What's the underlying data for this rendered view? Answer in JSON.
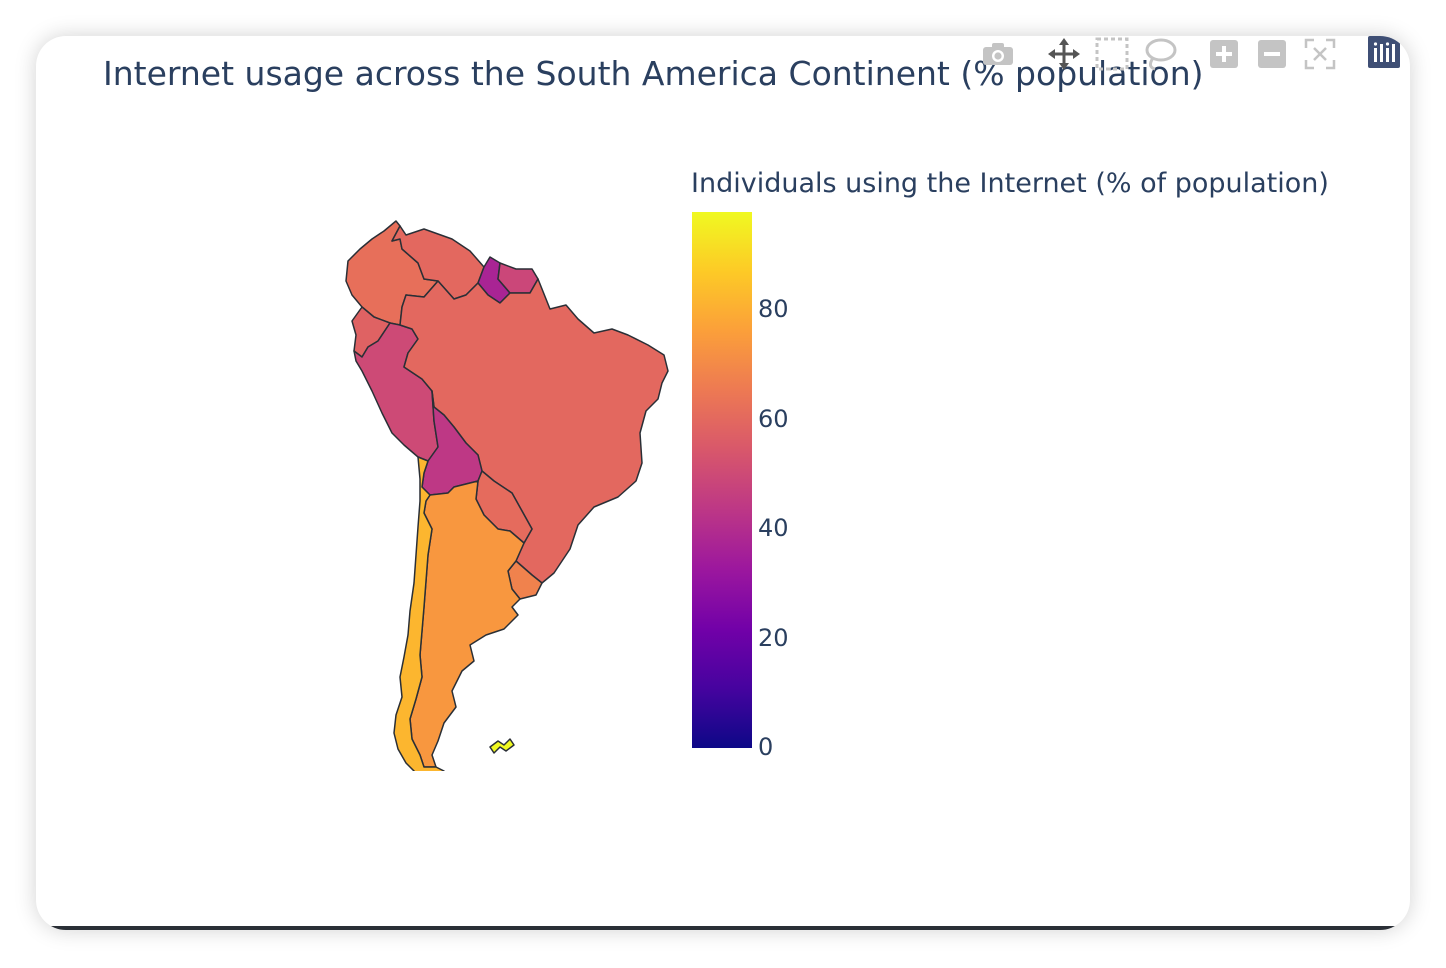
{
  "title": "Internet usage across the South America Continent (% population)",
  "colorbar": {
    "title": "Individuals using the Internet (% of population)",
    "ticks": [
      "0",
      "20",
      "40",
      "60",
      "80"
    ]
  },
  "modebar": {
    "buttons": [
      {
        "icon": "camera-icon",
        "tooltip": "Download plot as a png"
      },
      {
        "icon": "pan-icon",
        "tooltip": "Pan"
      },
      {
        "icon": "box-select-icon",
        "tooltip": "Box Select"
      },
      {
        "icon": "lasso-select-icon",
        "tooltip": "Lasso Select"
      },
      {
        "icon": "zoom-in-icon",
        "tooltip": "Zoom in"
      },
      {
        "icon": "zoom-out-icon",
        "tooltip": "Zoom out"
      },
      {
        "icon": "reset-view-icon",
        "tooltip": "Reset"
      }
    ],
    "logo": "plotly-logo-icon"
  },
  "colors": {
    "text": "#2a3f5f",
    "border": "#2a2f36",
    "colorscale": [
      "#0d0887",
      "#46039f",
      "#7201a8",
      "#9c179e",
      "#bd3786",
      "#d8576b",
      "#ed7953",
      "#fb9f3a",
      "#fdca26",
      "#f0f921"
    ]
  },
  "chart_data": {
    "type": "choropleth",
    "title": "Internet usage across the South America Continent (% population)",
    "colorbar_title": "Individuals using the Internet (% of population)",
    "z_range": [
      0,
      98
    ],
    "regions": [
      {
        "name": "Colombia",
        "value": 62
      },
      {
        "name": "Venezuela",
        "value": 60
      },
      {
        "name": "Guyana",
        "value": 37
      },
      {
        "name": "Suriname",
        "value": 49
      },
      {
        "name": "Ecuador",
        "value": 58
      },
      {
        "name": "Peru",
        "value": 50
      },
      {
        "name": "Brazil",
        "value": 60
      },
      {
        "name": "Bolivia",
        "value": 44
      },
      {
        "name": "Paraguay",
        "value": 61
      },
      {
        "name": "Uruguay",
        "value": 68
      },
      {
        "name": "Argentina",
        "value": 74
      },
      {
        "name": "Chile",
        "value": 82
      },
      {
        "name": "Falkland Islands",
        "value": 98
      }
    ]
  }
}
